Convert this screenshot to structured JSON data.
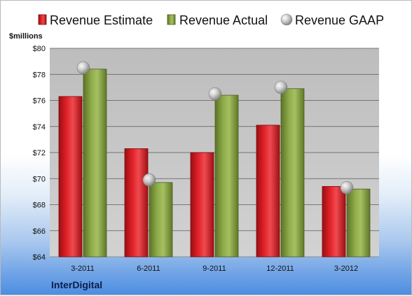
{
  "chart_data": {
    "type": "bar",
    "title": "",
    "ylabel": "$millions",
    "xlabel": "",
    "categories": [
      "3-2011",
      "6-2011",
      "9-2011",
      "12-2011",
      "3-2012"
    ],
    "series": [
      {
        "name": "Revenue Estimate",
        "type": "bar",
        "color": "#c8161d",
        "values": [
          76.3,
          72.3,
          72.0,
          74.1,
          69.4
        ]
      },
      {
        "name": "Revenue Actual",
        "type": "bar",
        "color": "#7c9a3a",
        "values": [
          78.4,
          69.7,
          76.4,
          76.9,
          69.2
        ]
      },
      {
        "name": "Revenue GAAP",
        "type": "marker",
        "color": "#a8a8a8",
        "values": [
          78.5,
          69.9,
          76.5,
          77.0,
          69.3
        ]
      }
    ],
    "ylim": [
      64,
      80
    ],
    "yticks": [
      "$64",
      "$66",
      "$68",
      "$70",
      "$72",
      "$74",
      "$76",
      "$78",
      "$80"
    ],
    "grid": true,
    "legend_position": "top"
  },
  "company": "InterDigital"
}
